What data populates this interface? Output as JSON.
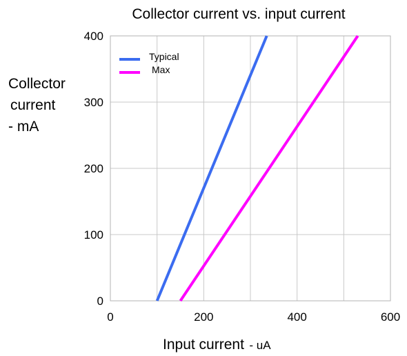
{
  "chart_data": {
    "type": "line",
    "title": "Collector current vs. input current",
    "ylabel_lines": [
      "Collector",
      "current",
      " - mA"
    ],
    "xlabel": "Input current",
    "xlabel_unit": "- uA",
    "xlim": [
      0,
      600
    ],
    "ylim": [
      0,
      400
    ],
    "xticks": [
      0,
      200,
      400,
      600
    ],
    "yticks": [
      0,
      100,
      200,
      300,
      400
    ],
    "x_gridlines": [
      0,
      100,
      200,
      300,
      400,
      500,
      600
    ],
    "y_gridlines": [
      0,
      100,
      200,
      300,
      400
    ],
    "grid": true,
    "legend": "top-left",
    "series": [
      {
        "name": "Typical",
        "color": "#3b6cf0",
        "points": [
          [
            100,
            0
          ],
          [
            335,
            400
          ]
        ]
      },
      {
        "name": "Max",
        "color": "#ff00ff",
        "points": [
          [
            150,
            0
          ],
          [
            530,
            400
          ]
        ]
      }
    ]
  }
}
